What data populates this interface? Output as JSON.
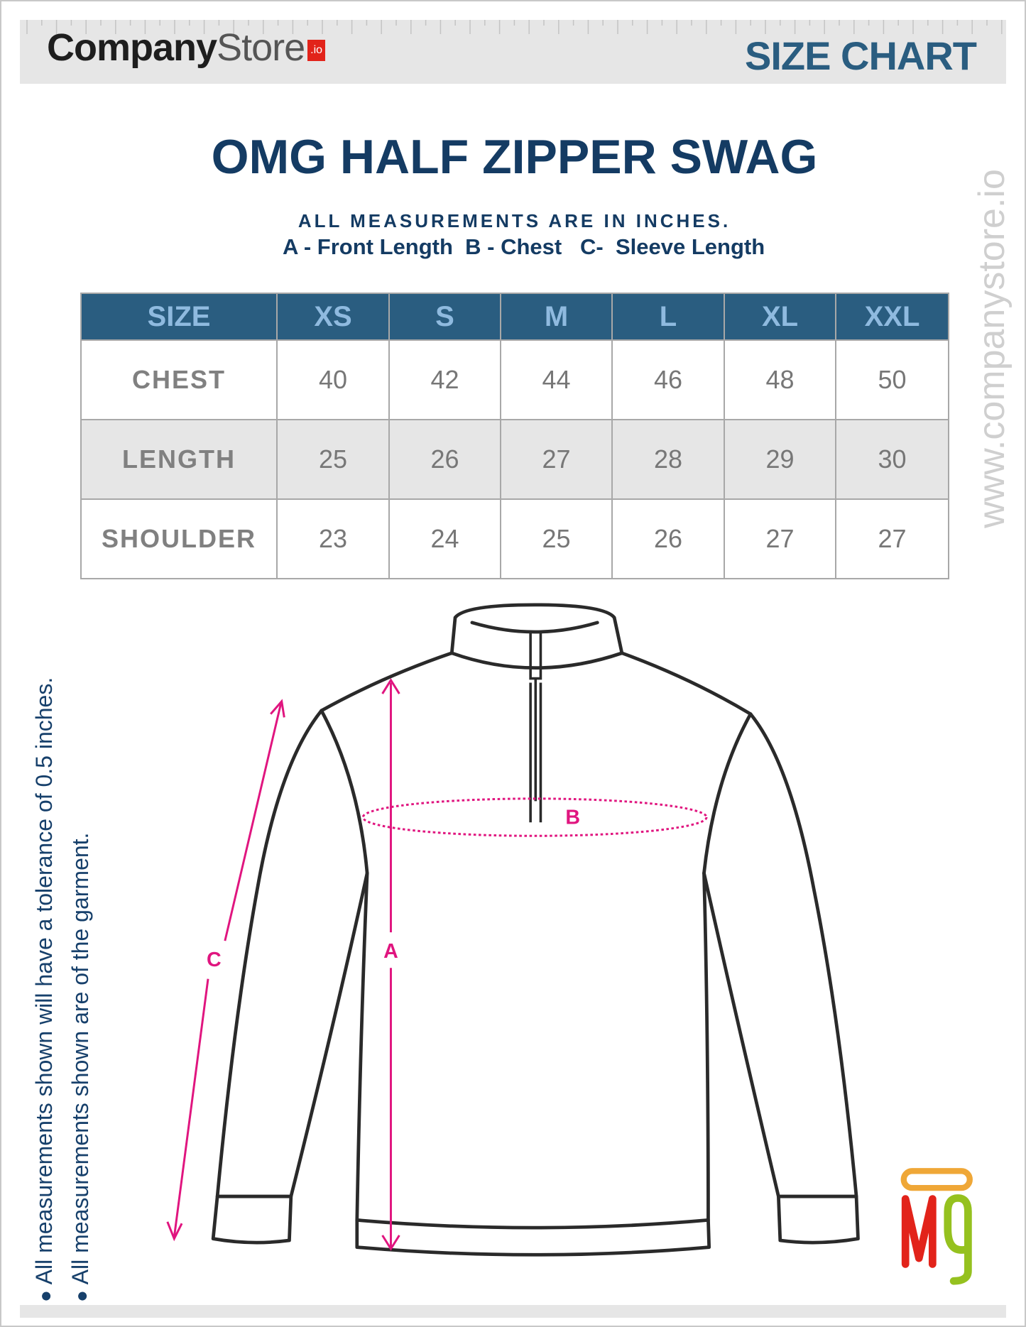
{
  "header": {
    "logo_bold": "Company",
    "logo_light": "Store",
    "logo_badge": ".io",
    "label": "SIZE CHART"
  },
  "title": "OMG HALF ZIPPER SWAG",
  "subtitle": "ALL MEASUREMENTS ARE IN INCHES.",
  "legend_line": "A - Front Length  B - Chest   C-  Sleeve Length",
  "table": {
    "headers": [
      "SIZE",
      "XS",
      "S",
      "M",
      "L",
      "XL",
      "XXL"
    ],
    "rows": [
      {
        "label": "CHEST",
        "values": [
          "40",
          "42",
          "44",
          "46",
          "48",
          "50"
        ]
      },
      {
        "label": "LENGTH",
        "values": [
          "25",
          "26",
          "27",
          "28",
          "29",
          "30"
        ]
      },
      {
        "label": "SHOULDER",
        "values": [
          "23",
          "24",
          "25",
          "26",
          "27",
          "27"
        ]
      }
    ]
  },
  "website": "www.companystore.io",
  "notes": [
    "All measurements shown will have a tolerance of 0.5 inches.",
    "All measurements shown are of the garment."
  ],
  "diagram": {
    "label_a": "A",
    "label_b": "B",
    "label_c": "C"
  },
  "brand_logo": "Mg",
  "colors": {
    "accent_blue": "#2a5d80",
    "navy": "#143b63",
    "measure_pink": "#e0157f",
    "logo_red": "#e2231a"
  }
}
